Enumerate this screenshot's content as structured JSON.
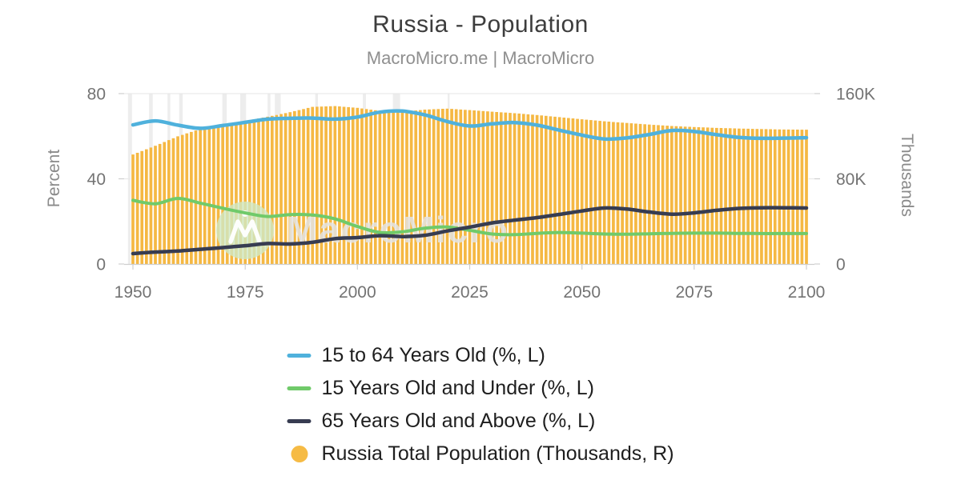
{
  "header": {
    "title": "Russia - Population",
    "subtitle": "MacroMicro.me | MacroMicro"
  },
  "watermark": {
    "text": "MacroMicro",
    "logo": "macromicro-mountain-logo"
  },
  "chart_data": {
    "type": "mixed",
    "title": "Russia - Population",
    "x_axis": {
      "range": [
        1948,
        2102
      ],
      "tick_labels": [
        "1950",
        "1975",
        "2000",
        "2025",
        "2050",
        "2075",
        "2100"
      ],
      "tick_values": [
        1950,
        1975,
        2000,
        2025,
        2050,
        2075,
        2100
      ]
    },
    "axes": {
      "left": {
        "title": "Percent",
        "tick_labels": [
          "0",
          "40",
          "80"
        ],
        "tick_values": [
          0,
          40,
          80
        ],
        "range": [
          0,
          80
        ]
      },
      "right": {
        "title": "Thousands",
        "tick_labels": [
          "0",
          "80K",
          "160K"
        ],
        "tick_values": [
          0,
          80000,
          160000
        ],
        "range": [
          0,
          160000
        ]
      }
    },
    "years": [
      1950,
      1955,
      1960,
      1965,
      1970,
      1975,
      1980,
      1985,
      1990,
      1995,
      2000,
      2005,
      2010,
      2015,
      2020,
      2025,
      2030,
      2035,
      2040,
      2045,
      2050,
      2055,
      2060,
      2065,
      2070,
      2075,
      2080,
      2085,
      2090,
      2095,
      2100
    ],
    "series": [
      {
        "name": "15 to 64 Years Old (%, L)",
        "type": "line",
        "axis": "left",
        "color": "#4FB1DC",
        "values": [
          65.3,
          67.2,
          65.2,
          63.7,
          65.0,
          66.5,
          68.0,
          68.4,
          68.5,
          68.0,
          69.0,
          71.3,
          71.8,
          70.0,
          66.9,
          64.8,
          65.8,
          66.4,
          65.2,
          62.8,
          60.5,
          58.7,
          59.2,
          60.8,
          62.7,
          62.2,
          60.7,
          59.4,
          59.0,
          59.1,
          59.3
        ]
      },
      {
        "name": "15 Years Old and Under (%, L)",
        "type": "line",
        "axis": "left",
        "color": "#70CA6A",
        "values": [
          29.9,
          28.3,
          30.8,
          28.6,
          26.2,
          24.0,
          22.3,
          23.2,
          23.0,
          21.2,
          17.6,
          14.8,
          15.1,
          16.8,
          17.4,
          15.8,
          14.1,
          13.8,
          14.4,
          14.8,
          14.5,
          14.1,
          14.0,
          14.2,
          14.4,
          14.5,
          14.5,
          14.4,
          14.3,
          14.3,
          14.3
        ]
      },
      {
        "name": "65 Years Old and Above (%, L)",
        "type": "line",
        "axis": "left",
        "color": "#373C51",
        "values": [
          4.9,
          5.6,
          6.1,
          6.9,
          7.7,
          8.6,
          9.6,
          9.4,
          10.2,
          11.9,
          12.4,
          13.3,
          12.9,
          13.5,
          15.5,
          17.3,
          19.3,
          20.6,
          21.8,
          23.3,
          24.9,
          26.3,
          25.8,
          24.4,
          23.4,
          24.0,
          25.2,
          26.1,
          26.4,
          26.4,
          26.3
        ]
      },
      {
        "name": "Russia Total Population (Thousands, R)",
        "type": "bar",
        "axis": "right",
        "color": "#F5B843",
        "values": [
          102800,
          111000,
          119900,
          126750,
          130400,
          134200,
          138260,
          142540,
          147530,
          148300,
          146600,
          143800,
          142850,
          144980,
          145900,
          144500,
          143000,
          141600,
          139900,
          137900,
          135900,
          134000,
          132400,
          130900,
          129600,
          128600,
          127800,
          127200,
          126700,
          126300,
          126100
        ]
      }
    ],
    "recession_bands": [
      [
        1948.9,
        1949.8
      ],
      [
        1953.6,
        1954.4
      ],
      [
        1957.7,
        1958.3
      ],
      [
        1960.3,
        1961.1
      ],
      [
        1969.9,
        1970.9
      ],
      [
        1973.9,
        1975.2
      ],
      [
        1980.0,
        1980.6
      ],
      [
        1981.6,
        1982.9
      ],
      [
        1990.6,
        1991.2
      ],
      [
        2001.2,
        2001.9
      ],
      [
        2007.9,
        2009.5
      ],
      [
        2020.1,
        2020.4
      ]
    ],
    "grid": "horizontal",
    "legend_position": "bottom"
  },
  "legend": {
    "items": [
      {
        "label": "15 to 64 Years Old (%, L)",
        "marker": "line",
        "color": "#4FB1DC"
      },
      {
        "label": "15 Years Old and Under (%, L)",
        "marker": "line",
        "color": "#70CA6A"
      },
      {
        "label": "65 Years Old and Above (%, L)",
        "marker": "line",
        "color": "#373C51"
      },
      {
        "label": "Russia Total Population (Thousands, R)",
        "marker": "circle",
        "color": "#F6BB45"
      }
    ]
  },
  "colors": {
    "band": "#ededed",
    "gridline": "#e9e9e9",
    "axis_line": "#cfcfcf",
    "tick_text": "#737373",
    "bar_gap": "#ffffff"
  }
}
